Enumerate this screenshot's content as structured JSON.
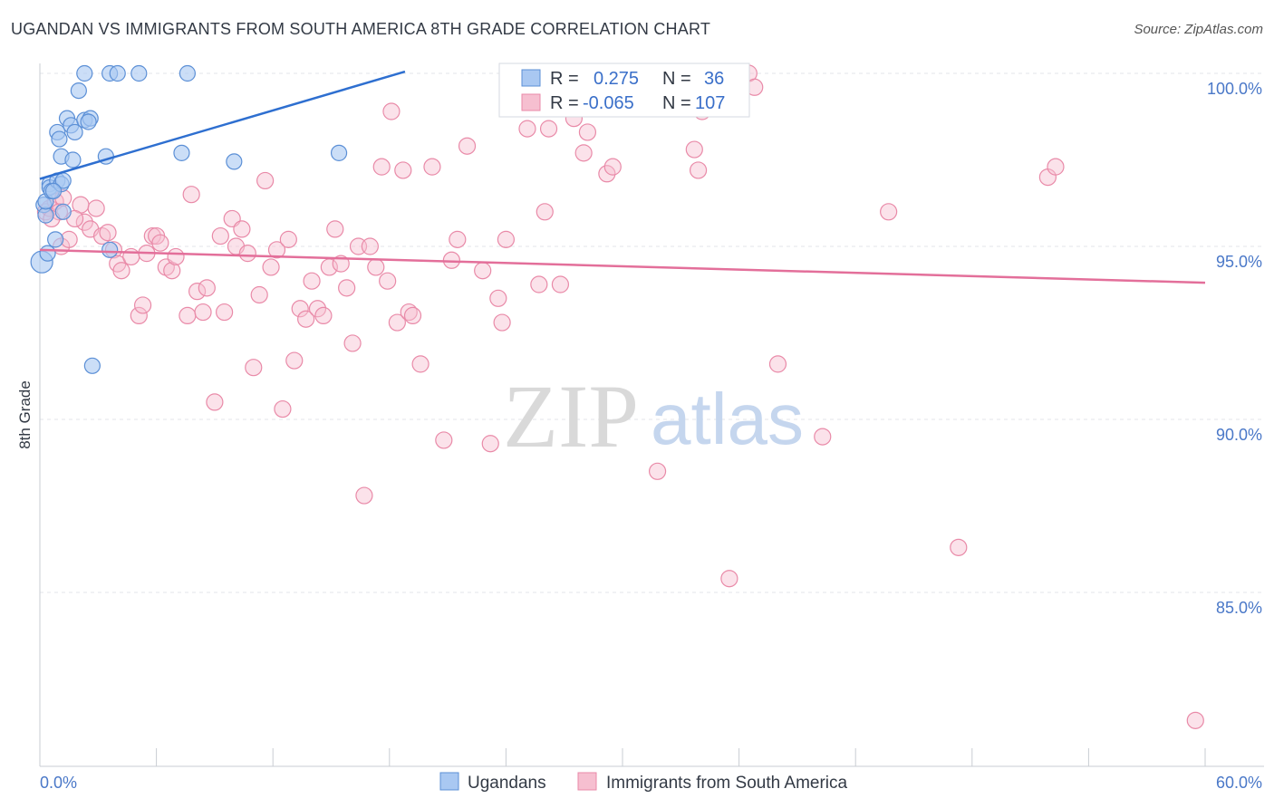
{
  "header": {
    "title": "UGANDAN VS IMMIGRANTS FROM SOUTH AMERICA 8TH GRADE CORRELATION CHART",
    "source": "Source: ZipAtlas.com"
  },
  "watermark": {
    "zip": "ZIP",
    "atlas": "atlas"
  },
  "colors": {
    "blue_fill": "#a9c8f2",
    "blue_stroke": "#5b8fd6",
    "blue_line": "#2e6fd0",
    "pink_fill": "#f6bfd0",
    "pink_stroke": "#e98aa8",
    "pink_line": "#e36f9a",
    "grid": "#e3e6ea",
    "tick_label": "#4a78c8"
  },
  "legend_box": {
    "row1": {
      "r_label": "R =",
      "r_value": "0.275",
      "n_label": "N =",
      "n_value": "36"
    },
    "row2": {
      "r_label": "R =",
      "r_value": "-0.065",
      "n_label": "N =",
      "n_value": "107"
    }
  },
  "bottom_legend": {
    "series1": "Ugandans",
    "series2": "Immigrants from South America"
  },
  "chart_data": {
    "type": "scatter",
    "title": "UGANDAN VS IMMIGRANTS FROM SOUTH AMERICA 8TH GRADE CORRELATION CHART",
    "xlabel": "",
    "ylabel": "8th Grade",
    "xlim": [
      0,
      60
    ],
    "ylim": [
      80.9,
      100.7
    ],
    "x_tick_labels": [
      "0.0%",
      "60.0%"
    ],
    "y_ticks": [
      100,
      95,
      90,
      85
    ],
    "y_tick_labels": [
      "100.0%",
      "95.0%",
      "90.0%",
      "85.0%"
    ],
    "grid": "horizontal dashed",
    "legend_position": "top-center",
    "series": [
      {
        "name": "Ugandans",
        "color": "#a9c8f2",
        "r": 0.275,
        "n": 36,
        "trend": {
          "x": [
            0,
            18.8
          ],
          "y": [
            96.95,
            100.05
          ]
        },
        "points": [
          [
            0.1,
            94.55
          ],
          [
            0.2,
            96.2
          ],
          [
            0.3,
            95.9
          ],
          [
            0.3,
            96.3
          ],
          [
            0.4,
            94.8
          ],
          [
            0.5,
            96.8
          ],
          [
            0.5,
            96.7
          ],
          [
            0.6,
            96.6
          ],
          [
            0.8,
            95.2
          ],
          [
            0.9,
            96.9
          ],
          [
            0.9,
            98.3
          ],
          [
            1.0,
            98.1
          ],
          [
            1.1,
            96.8
          ],
          [
            1.1,
            97.6
          ],
          [
            1.2,
            96.0
          ],
          [
            1.4,
            98.7
          ],
          [
            1.6,
            98.5
          ],
          [
            1.7,
            97.5
          ],
          [
            1.8,
            98.3
          ],
          [
            2.0,
            99.5
          ],
          [
            2.3,
            98.65
          ],
          [
            2.3,
            100.0
          ],
          [
            2.6,
            98.7
          ],
          [
            2.7,
            91.55
          ],
          [
            3.4,
            97.6
          ],
          [
            3.6,
            100.0
          ],
          [
            3.6,
            94.9
          ],
          [
            4.0,
            100.0
          ],
          [
            5.1,
            100.0
          ],
          [
            7.3,
            97.7
          ],
          [
            7.6,
            100.0
          ],
          [
            10.0,
            97.45
          ],
          [
            15.4,
            97.7
          ],
          [
            1.2,
            96.9
          ],
          [
            2.5,
            98.6
          ],
          [
            0.7,
            96.6
          ]
        ]
      },
      {
        "name": "Immigrants from South America",
        "color": "#f6bfd0",
        "r": -0.065,
        "n": 107,
        "trend": {
          "x": [
            0,
            60
          ],
          "y": [
            94.9,
            93.95
          ]
        },
        "points": [
          [
            0.3,
            96.0
          ],
          [
            0.5,
            96.1
          ],
          [
            0.8,
            96.3
          ],
          [
            1.0,
            96.0
          ],
          [
            1.1,
            95.0
          ],
          [
            1.2,
            96.4
          ],
          [
            1.5,
            95.2
          ],
          [
            2.1,
            96.2
          ],
          [
            2.3,
            95.7
          ],
          [
            2.6,
            95.5
          ],
          [
            2.9,
            96.1
          ],
          [
            3.2,
            95.3
          ],
          [
            3.5,
            95.4
          ],
          [
            3.8,
            94.9
          ],
          [
            4.0,
            94.5
          ],
          [
            4.2,
            94.3
          ],
          [
            4.7,
            94.7
          ],
          [
            5.1,
            93.0
          ],
          [
            5.3,
            93.3
          ],
          [
            5.5,
            94.8
          ],
          [
            5.8,
            95.3
          ],
          [
            6.0,
            95.3
          ],
          [
            6.2,
            95.1
          ],
          [
            6.5,
            94.4
          ],
          [
            6.8,
            94.3
          ],
          [
            7.0,
            94.7
          ],
          [
            7.6,
            93.0
          ],
          [
            7.8,
            96.5
          ],
          [
            8.1,
            93.7
          ],
          [
            8.4,
            93.1
          ],
          [
            8.6,
            93.8
          ],
          [
            9.0,
            90.5
          ],
          [
            9.3,
            95.3
          ],
          [
            9.5,
            93.1
          ],
          [
            9.9,
            95.8
          ],
          [
            10.1,
            95.0
          ],
          [
            10.4,
            95.5
          ],
          [
            10.7,
            94.8
          ],
          [
            11.0,
            91.5
          ],
          [
            11.3,
            93.6
          ],
          [
            11.6,
            96.9
          ],
          [
            11.9,
            94.4
          ],
          [
            12.2,
            94.9
          ],
          [
            12.5,
            90.3
          ],
          [
            12.8,
            95.2
          ],
          [
            13.1,
            91.7
          ],
          [
            13.4,
            93.2
          ],
          [
            13.7,
            92.9
          ],
          [
            14.0,
            94.0
          ],
          [
            14.3,
            93.2
          ],
          [
            14.6,
            93.0
          ],
          [
            14.9,
            94.4
          ],
          [
            15.2,
            95.5
          ],
          [
            15.5,
            94.5
          ],
          [
            15.8,
            93.8
          ],
          [
            16.1,
            92.2
          ],
          [
            16.4,
            95.0
          ],
          [
            16.7,
            87.8
          ],
          [
            17.0,
            95.0
          ],
          [
            17.3,
            94.4
          ],
          [
            17.6,
            97.3
          ],
          [
            17.9,
            94.0
          ],
          [
            18.1,
            98.9
          ],
          [
            18.4,
            92.8
          ],
          [
            18.7,
            97.2
          ],
          [
            19.0,
            93.1
          ],
          [
            19.2,
            93.0
          ],
          [
            19.6,
            91.6
          ],
          [
            20.2,
            97.3
          ],
          [
            20.8,
            89.4
          ],
          [
            21.2,
            94.6
          ],
          [
            21.5,
            95.2
          ],
          [
            22.0,
            97.9
          ],
          [
            22.8,
            94.3
          ],
          [
            23.2,
            89.3
          ],
          [
            23.6,
            93.5
          ],
          [
            23.8,
            92.8
          ],
          [
            24.0,
            95.2
          ],
          [
            24.5,
            100.0
          ],
          [
            25.1,
            98.4
          ],
          [
            25.7,
            93.9
          ],
          [
            26.0,
            96.0
          ],
          [
            26.2,
            98.4
          ],
          [
            26.8,
            93.9
          ],
          [
            27.5,
            98.7
          ],
          [
            28.0,
            97.7
          ],
          [
            28.2,
            98.3
          ],
          [
            28.6,
            100.0
          ],
          [
            29.2,
            97.1
          ],
          [
            29.5,
            97.3
          ],
          [
            31.8,
            88.5
          ],
          [
            32.6,
            100.0
          ],
          [
            33.7,
            97.8
          ],
          [
            33.9,
            97.2
          ],
          [
            34.1,
            98.9
          ],
          [
            35.5,
            85.4
          ],
          [
            36.5,
            100.0
          ],
          [
            36.8,
            99.6
          ],
          [
            38.0,
            91.6
          ],
          [
            40.3,
            89.5
          ],
          [
            43.7,
            96.0
          ],
          [
            47.3,
            86.3
          ],
          [
            51.9,
            97.0
          ],
          [
            52.3,
            97.3
          ],
          [
            59.5,
            81.3
          ],
          [
            0.6,
            95.8
          ],
          [
            1.8,
            95.8
          ]
        ]
      }
    ]
  }
}
